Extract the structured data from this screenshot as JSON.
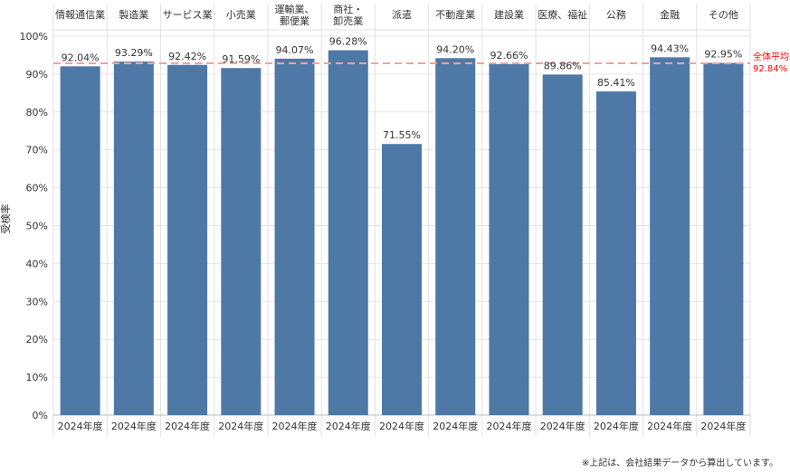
{
  "chart_data": {
    "type": "bar",
    "categories": [
      [
        "情報通信業"
      ],
      [
        "製造業"
      ],
      [
        "サービス業"
      ],
      [
        "小売業"
      ],
      [
        "運輸業、",
        "郵便業"
      ],
      [
        "商社・",
        "卸売業"
      ],
      [
        "派遣"
      ],
      [
        "不動産業"
      ],
      [
        "建設業"
      ],
      [
        "医療、福祉"
      ],
      [
        "公務"
      ],
      [
        "金融"
      ],
      [
        "その他"
      ]
    ],
    "x_sublabel": "2024年度",
    "values": [
      92.04,
      93.29,
      92.42,
      91.59,
      94.07,
      96.28,
      71.55,
      94.2,
      92.66,
      89.86,
      85.41,
      94.43,
      92.95
    ],
    "value_labels": [
      "92.04%",
      "93.29%",
      "92.42%",
      "91.59%",
      "94.07%",
      "96.28%",
      "71.55%",
      "94.20%",
      "92.66%",
      "89.86%",
      "85.41%",
      "94.43%",
      "92.95%"
    ],
    "ylabel": "受検率",
    "ylim": [
      0,
      100
    ],
    "y_ticks": [
      0,
      10,
      20,
      30,
      40,
      50,
      60,
      70,
      80,
      90,
      100
    ],
    "y_tick_labels": [
      "0%",
      "10%",
      "20%",
      "30%",
      "40%",
      "50%",
      "60%",
      "70%",
      "80%",
      "90%",
      "100%"
    ],
    "reference_line": {
      "value": 92.84,
      "label": "全体平均",
      "value_label": "92.84%",
      "color": "#ff0000"
    },
    "bar_color": "#4e79a7",
    "grid": true,
    "legend": "none"
  },
  "footnote": "※上記は、会社結果データから算出しています。"
}
